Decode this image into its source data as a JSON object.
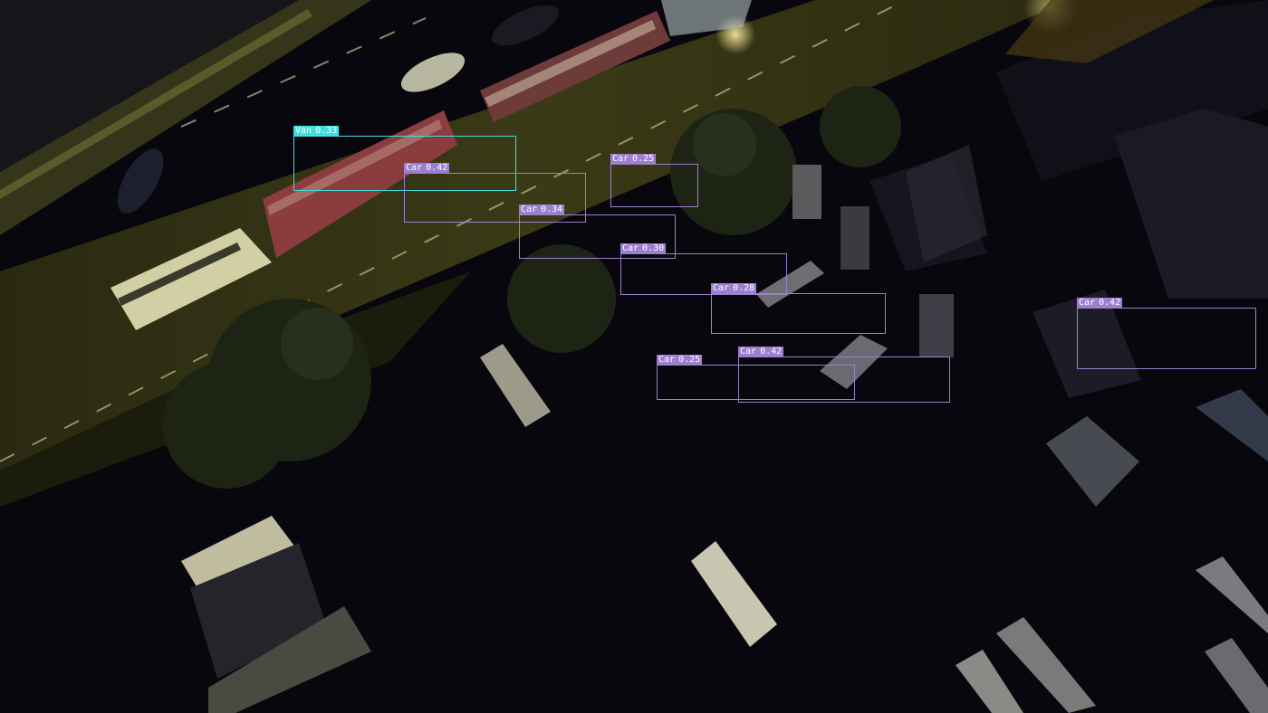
{
  "detections": [
    {
      "class": "Van",
      "score": "0.33",
      "color": "#40e0e0"
    },
    {
      "class": "Car",
      "score": "0.42",
      "color": "#9d7fd0"
    },
    {
      "class": "Car",
      "score": "0.25",
      "color": "#9d7fd0"
    },
    {
      "class": "Car",
      "score": "0.34",
      "color": "#9d7fd0"
    },
    {
      "class": "Car",
      "score": "0.30",
      "color": "#9d7fd0"
    },
    {
      "class": "Car",
      "score": "0.28",
      "color": "#9d7fd0"
    },
    {
      "class": "Car",
      "score": "0.42",
      "color": "#9d7fd0"
    },
    {
      "class": "Car",
      "score": "0.25",
      "color": "#9d7fd0"
    },
    {
      "class": "Car",
      "score": "0.42",
      "color": "#9d7fd0"
    }
  ]
}
